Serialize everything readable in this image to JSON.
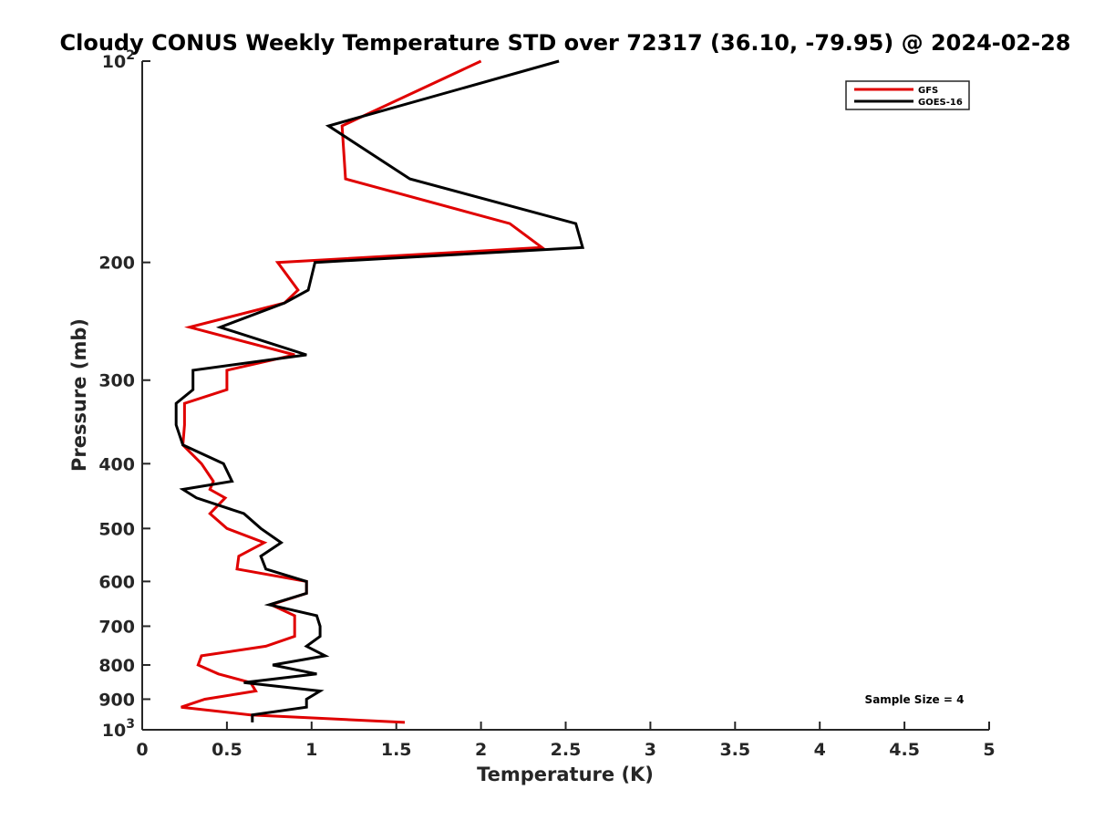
{
  "chart_data": {
    "type": "line",
    "title": "Cloudy CONUS Weekly Temperature STD over 72317 (36.10, -79.95) @ 2024-02-28",
    "xlabel": "Temperature (K)",
    "ylabel": "Pressure (mb)",
    "xlim": [
      0,
      5
    ],
    "ylim": [
      1000,
      100
    ],
    "y_scale": "log",
    "y_reversed": true,
    "x_ticks": [
      0,
      0.5,
      1,
      1.5,
      2,
      2.5,
      3,
      3.5,
      4,
      4.5,
      5
    ],
    "x_tick_labels": [
      "0",
      "0.5",
      "1",
      "1.5",
      "2",
      "2.5",
      "3",
      "3.5",
      "4",
      "4.5",
      "5"
    ],
    "y_ticks": [
      100,
      200,
      300,
      400,
      500,
      600,
      700,
      800,
      900,
      1000
    ],
    "y_tick_labels": [
      "10^2",
      "200",
      "300",
      "400",
      "500",
      "600",
      "700",
      "800",
      "900",
      "10^3"
    ],
    "grid": false,
    "legend_position": "top-right",
    "annotation": "Sample Size = 4",
    "series": [
      {
        "name": "GFS",
        "color": "#e00000",
        "points": [
          [
            2.0,
            100
          ],
          [
            1.18,
            125
          ],
          [
            1.2,
            150
          ],
          [
            2.17,
            175
          ],
          [
            2.36,
            190
          ],
          [
            0.8,
            200
          ],
          [
            0.92,
            220
          ],
          [
            0.84,
            230
          ],
          [
            0.28,
            250
          ],
          [
            0.9,
            275
          ],
          [
            0.5,
            290
          ],
          [
            0.5,
            310
          ],
          [
            0.25,
            325
          ],
          [
            0.25,
            350
          ],
          [
            0.24,
            375
          ],
          [
            0.35,
            400
          ],
          [
            0.42,
            425
          ],
          [
            0.4,
            437
          ],
          [
            0.49,
            450
          ],
          [
            0.4,
            475
          ],
          [
            0.5,
            500
          ],
          [
            0.72,
            525
          ],
          [
            0.57,
            550
          ],
          [
            0.56,
            575
          ],
          [
            0.97,
            600
          ],
          [
            0.97,
            625
          ],
          [
            0.76,
            650
          ],
          [
            0.9,
            675
          ],
          [
            0.9,
            700
          ],
          [
            0.9,
            725
          ],
          [
            0.73,
            750
          ],
          [
            0.35,
            775
          ],
          [
            0.33,
            800
          ],
          [
            0.45,
            825
          ],
          [
            0.64,
            850
          ],
          [
            0.67,
            875
          ],
          [
            0.37,
            900
          ],
          [
            0.23,
            925
          ],
          [
            0.64,
            950
          ],
          [
            1.55,
            975
          ]
        ]
      },
      {
        "name": "GOES-16",
        "color": "#000000",
        "points": [
          [
            2.46,
            100
          ],
          [
            1.1,
            125
          ],
          [
            1.58,
            150
          ],
          [
            2.56,
            175
          ],
          [
            2.6,
            190
          ],
          [
            1.02,
            200
          ],
          [
            0.98,
            220
          ],
          [
            0.84,
            230
          ],
          [
            0.46,
            250
          ],
          [
            0.97,
            275
          ],
          [
            0.3,
            290
          ],
          [
            0.3,
            310
          ],
          [
            0.2,
            325
          ],
          [
            0.2,
            350
          ],
          [
            0.24,
            375
          ],
          [
            0.48,
            400
          ],
          [
            0.53,
            425
          ],
          [
            0.24,
            437
          ],
          [
            0.32,
            450
          ],
          [
            0.6,
            475
          ],
          [
            0.7,
            500
          ],
          [
            0.82,
            525
          ],
          [
            0.7,
            550
          ],
          [
            0.73,
            575
          ],
          [
            0.97,
            600
          ],
          [
            0.97,
            625
          ],
          [
            0.75,
            650
          ],
          [
            1.03,
            675
          ],
          [
            1.05,
            700
          ],
          [
            1.05,
            725
          ],
          [
            0.97,
            750
          ],
          [
            1.08,
            775
          ],
          [
            0.77,
            800
          ],
          [
            1.03,
            825
          ],
          [
            0.6,
            850
          ],
          [
            1.05,
            875
          ],
          [
            0.97,
            900
          ],
          [
            0.97,
            925
          ],
          [
            0.65,
            950
          ],
          [
            0.65,
            975
          ]
        ]
      }
    ]
  }
}
